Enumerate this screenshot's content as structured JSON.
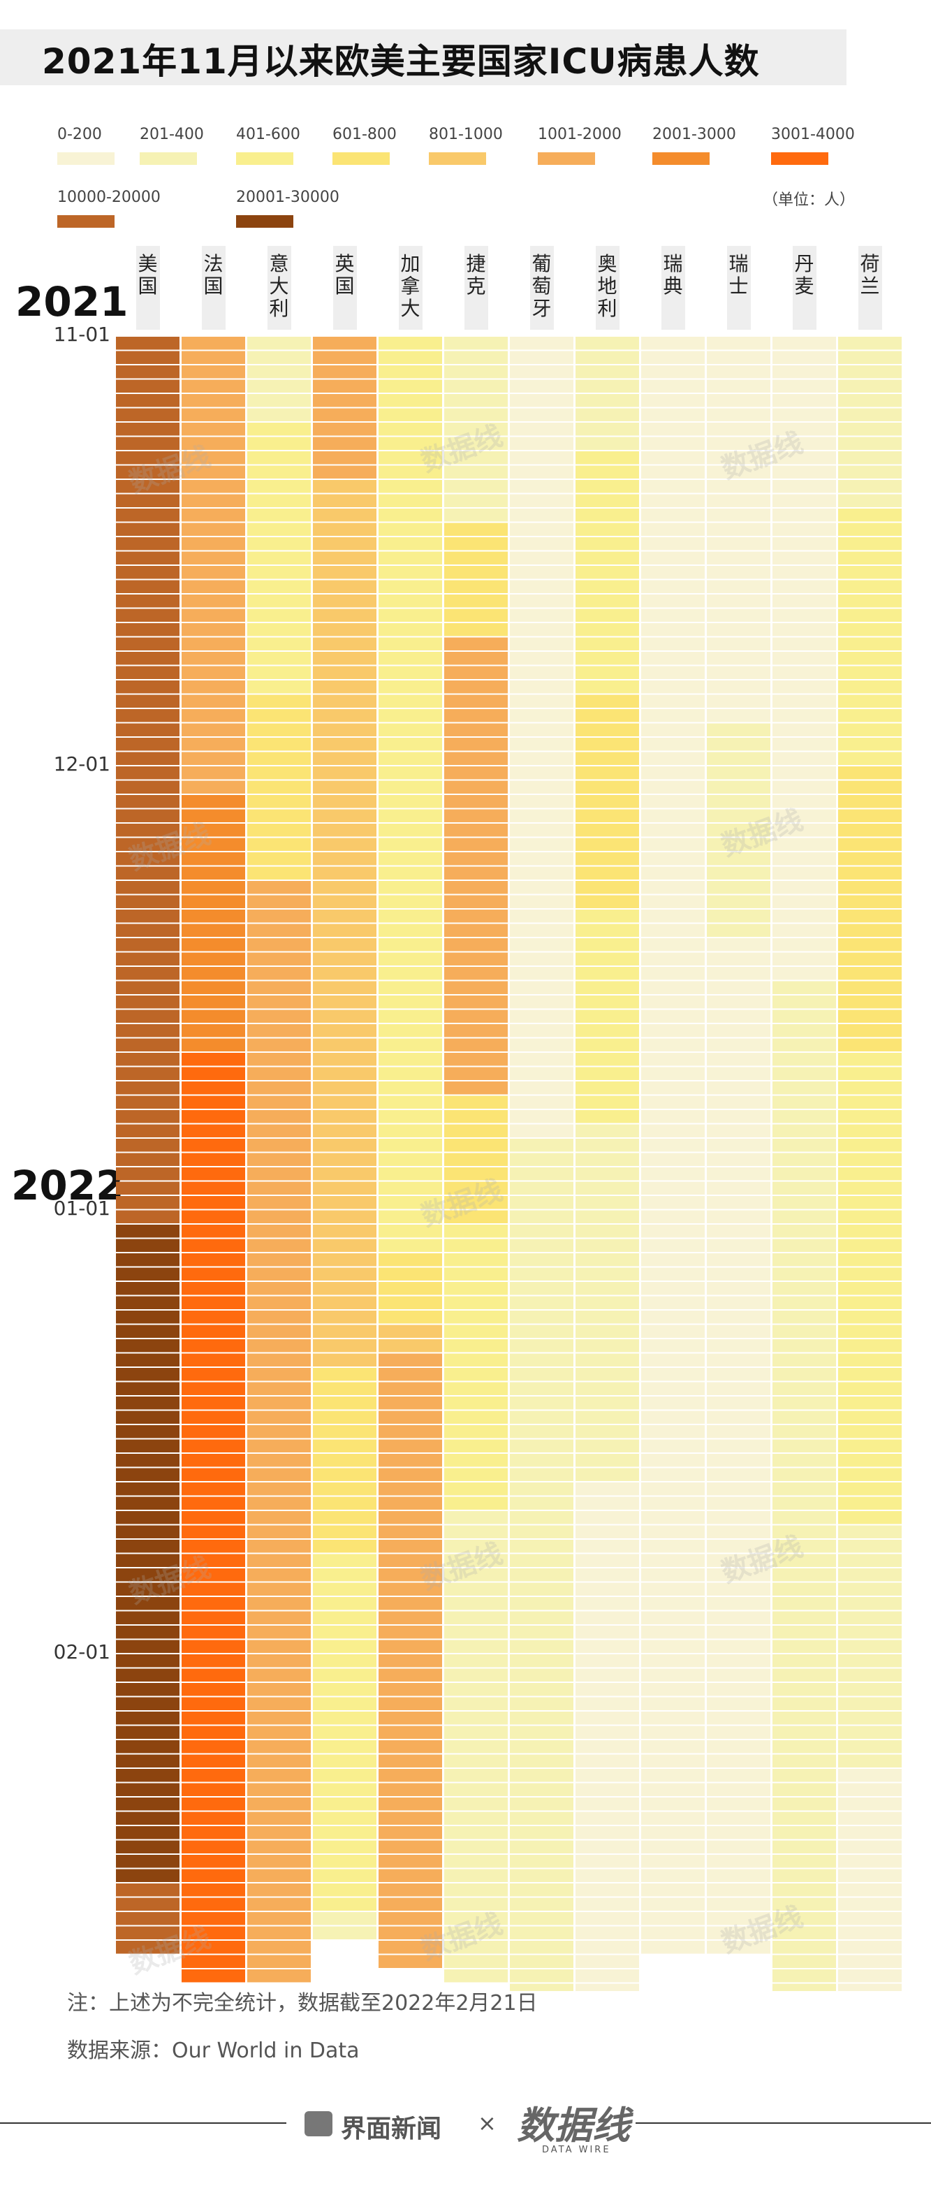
{
  "title": "2021年11月以来欧美主要国家ICU病患人数",
  "unit": "（单位：人）",
  "legend": [
    {
      "label": "0-200",
      "color": "#f8f3d5"
    },
    {
      "label": "201-400",
      "color": "#f6f2b4"
    },
    {
      "label": "401-600",
      "color": "#f9ef8e"
    },
    {
      "label": "601-800",
      "color": "#fbe474"
    },
    {
      "label": "801-1000",
      "color": "#f9c96a"
    },
    {
      "label": "1001-2000",
      "color": "#f6ad5a"
    },
    {
      "label": "2001-3000",
      "color": "#f48c2c"
    },
    {
      "label": "3001-4000",
      "color": "#ff6a0e"
    },
    {
      "label": "10000-20000",
      "color": "#bd6627"
    },
    {
      "label": "20001-30000",
      "color": "#8c440f"
    }
  ],
  "years": {
    "y2021": "2021",
    "y2022": "2022"
  },
  "notes": {
    "note": "注：上述为不完全统计，数据截至2022年2月21日",
    "source": "数据来源：Our World in Data"
  },
  "footer": {
    "brand": "界面新闻",
    "times": "×",
    "mark": "数据线",
    "mark_sub": "DATA WIRE"
  },
  "watermark": "数据线",
  "chart_data": {
    "type": "heatmap",
    "title": "2021年11月以来欧美主要国家ICU病患人数",
    "date_range": [
      "2021-11-01",
      "2022-02-21"
    ],
    "row_unit": "day",
    "date_ticks": [
      "11-01",
      "12-01",
      "01-01",
      "02-01"
    ],
    "countries": [
      "美国",
      "法国",
      "意大利",
      "英国",
      "加拿大",
      "捷克",
      "葡萄牙",
      "奥地利",
      "瑞典",
      "瑞士",
      "丹麦",
      "荷兰"
    ],
    "series": [
      {
        "name": "美国",
        "segments": [
          {
            "days": 62,
            "bin": "10000-20000"
          },
          {
            "days": 46,
            "bin": "20001-30000"
          },
          {
            "days": 5,
            "bin": "10000-20000"
          }
        ]
      },
      {
        "name": "法国",
        "segments": [
          {
            "days": 32,
            "bin": "1001-2000"
          },
          {
            "days": 18,
            "bin": "2001-3000"
          },
          {
            "days": 65,
            "bin": "3001-4000"
          }
        ]
      },
      {
        "name": "意大利",
        "segments": [
          {
            "days": 6,
            "bin": "201-400"
          },
          {
            "days": 19,
            "bin": "401-600"
          },
          {
            "days": 13,
            "bin": "601-800"
          },
          {
            "days": 77,
            "bin": "1001-2000"
          }
        ]
      },
      {
        "name": "英国",
        "segments": [
          {
            "days": 10,
            "bin": "1001-2000"
          },
          {
            "days": 62,
            "bin": "801-1000"
          },
          {
            "days": 13,
            "bin": "601-800"
          },
          {
            "days": 25,
            "bin": "401-600"
          },
          {
            "days": 2,
            "bin": "201-400"
          }
        ]
      },
      {
        "name": "加拿大",
        "segments": [
          {
            "days": 64,
            "bin": "401-600"
          },
          {
            "days": 5,
            "bin": "601-800"
          },
          {
            "days": 2,
            "bin": "801-1000"
          },
          {
            "days": 43,
            "bin": "1001-2000"
          }
        ]
      },
      {
        "name": "捷克",
        "segments": [
          {
            "days": 13,
            "bin": "201-400"
          },
          {
            "days": 8,
            "bin": "601-800"
          },
          {
            "days": 32,
            "bin": "1001-2000"
          },
          {
            "days": 9,
            "bin": "601-800"
          },
          {
            "days": 20,
            "bin": "401-600"
          },
          {
            "days": 33,
            "bin": "201-400"
          }
        ]
      },
      {
        "name": "葡萄牙",
        "segments": [
          {
            "days": 56,
            "bin": "0-200"
          },
          {
            "days": 60,
            "bin": "201-400"
          }
        ]
      },
      {
        "name": "奥地利",
        "segments": [
          {
            "days": 8,
            "bin": "201-400"
          },
          {
            "days": 17,
            "bin": "401-600"
          },
          {
            "days": 15,
            "bin": "601-800"
          },
          {
            "days": 15,
            "bin": "401-600"
          },
          {
            "days": 25,
            "bin": "201-400"
          },
          {
            "days": 36,
            "bin": "0-200"
          }
        ]
      },
      {
        "name": "瑞典",
        "segments": [
          {
            "days": 113,
            "bin": "0-200"
          }
        ]
      },
      {
        "name": "瑞士",
        "segments": [
          {
            "days": 27,
            "bin": "0-200"
          },
          {
            "days": 15,
            "bin": "201-400"
          },
          {
            "days": 71,
            "bin": "0-200"
          }
        ]
      },
      {
        "name": "丹麦",
        "segments": [
          {
            "days": 45,
            "bin": "0-200"
          },
          {
            "days": 71,
            "bin": "201-400"
          }
        ]
      },
      {
        "name": "荷兰",
        "segments": [
          {
            "days": 12,
            "bin": "201-400"
          },
          {
            "days": 18,
            "bin": "401-600"
          },
          {
            "days": 20,
            "bin": "601-800"
          },
          {
            "days": 33,
            "bin": "401-600"
          },
          {
            "days": 17,
            "bin": "201-400"
          },
          {
            "days": 16,
            "bin": "0-200"
          }
        ]
      }
    ]
  }
}
